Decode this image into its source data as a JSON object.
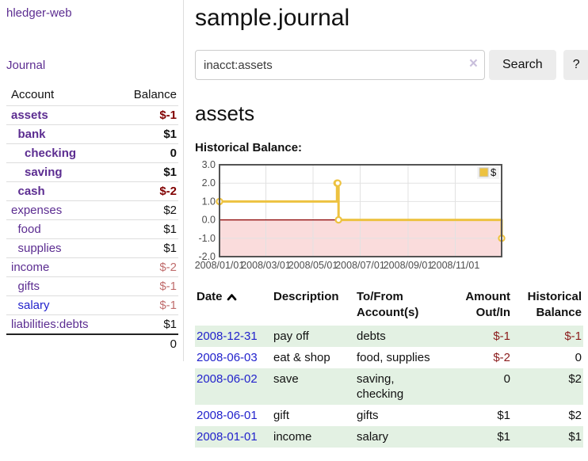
{
  "colors": {
    "accent_purple": "#5c2d91",
    "link_blue": "#2222cc",
    "negative_bold": "#800000",
    "negative_register": "#8b1c1c",
    "negative_dim": "#c06d6d",
    "row_stripe_green": "#e3f1e3",
    "chart_line_gold": "#edc240",
    "chart_negative_fill": "#fadcdc",
    "chart_zero_line": "#8b0000",
    "button_gray": "#ececec"
  },
  "sidebar": {
    "brand": "hledger-web",
    "journal_link": "Journal",
    "accounts_table": {
      "headers": [
        "Account",
        "Balance"
      ],
      "rows": [
        {
          "account": "assets",
          "indent": 1,
          "bold": true,
          "color": "purple",
          "balance": "$-1",
          "balance_class": "neg"
        },
        {
          "account": "bank",
          "indent": 2,
          "bold": true,
          "color": "purple",
          "balance": "$1",
          "balance_class": "pos"
        },
        {
          "account": "checking",
          "indent": 3,
          "bold": true,
          "color": "purple",
          "balance": "0",
          "balance_class": "pos"
        },
        {
          "account": "saving",
          "indent": 3,
          "bold": true,
          "color": "purple",
          "balance": "$1",
          "balance_class": "pos"
        },
        {
          "account": "cash",
          "indent": 2,
          "bold": true,
          "color": "purple",
          "balance": "$-2",
          "balance_class": "neg"
        },
        {
          "account": "expenses",
          "indent": 1,
          "bold": false,
          "color": "purple",
          "balance": "$2",
          "balance_class": "pos"
        },
        {
          "account": "food",
          "indent": 2,
          "bold": false,
          "color": "purple",
          "balance": "$1",
          "balance_class": "pos"
        },
        {
          "account": "supplies",
          "indent": 2,
          "bold": false,
          "color": "purple",
          "balance": "$1",
          "balance_class": "pos"
        },
        {
          "account": "income",
          "indent": 1,
          "bold": false,
          "color": "purple",
          "balance": "$-2",
          "balance_class": "neg-dim"
        },
        {
          "account": "gifts",
          "indent": 2,
          "bold": false,
          "color": "purple",
          "balance": "$-1",
          "balance_class": "neg-dim"
        },
        {
          "account": "salary",
          "indent": 2,
          "bold": false,
          "color": "blue",
          "balance": "$-1",
          "balance_class": "neg-dim"
        },
        {
          "account": "liabilities:debts",
          "indent": 1,
          "bold": false,
          "color": "purple",
          "balance": "$1",
          "balance_class": "pos"
        }
      ],
      "total": "0"
    }
  },
  "main": {
    "title": "sample.journal",
    "search": {
      "query": "inacct:assets",
      "clear_icon": "×",
      "search_button": "Search",
      "help_button": "?"
    },
    "section_heading": "assets",
    "chart_label": "Historical Balance:"
  },
  "chart_data": {
    "type": "line",
    "step": true,
    "title": "Historical Balance",
    "legend": {
      "position": "top-right",
      "entries": [
        "$"
      ]
    },
    "series": [
      {
        "name": "$",
        "color": "#edc240",
        "points": [
          [
            "2008-01-01",
            1
          ],
          [
            "2008-06-01",
            2
          ],
          [
            "2008-06-02",
            2
          ],
          [
            "2008-06-03",
            0
          ],
          [
            "2008-12-31",
            -1
          ]
        ]
      }
    ],
    "ylim": [
      -2.0,
      3.0
    ],
    "yticks": [
      "3.0",
      "2.0",
      "1.0",
      "0.0",
      "-1.0",
      "-2.0"
    ],
    "xticks": [
      "2008/01/01",
      "2008/03/01",
      "2008/05/01",
      "2008/07/01",
      "2008/09/01",
      "2008/11/01"
    ],
    "xrange": [
      "2008-01-01",
      "2008-12-31"
    ],
    "grid": true,
    "negative_region_fill": "#fadcdc",
    "zero_line_color": "#8b0000"
  },
  "register": {
    "headers": {
      "date": "Date",
      "description": "Description",
      "tofrom": "To/From Account(s)",
      "amount": "Amount Out/In",
      "balance": "Historical Balance"
    },
    "rows": [
      {
        "date": "2008-12-31",
        "description": "pay off",
        "accounts": "debts",
        "accounts_wrap": false,
        "amount": "$-1",
        "amount_neg": true,
        "balance": "$-1",
        "balance_neg": true
      },
      {
        "date": "2008-06-03",
        "description": "eat & shop",
        "accounts": "food, supplies",
        "accounts_wrap": false,
        "amount": "$-2",
        "amount_neg": true,
        "balance": "0",
        "balance_neg": false
      },
      {
        "date": "2008-06-02",
        "description": "save",
        "accounts": "saving, checking",
        "accounts_wrap": true,
        "amount": "0",
        "amount_neg": false,
        "balance": "$2",
        "balance_neg": false
      },
      {
        "date": "2008-06-01",
        "description": "gift",
        "accounts": "gifts",
        "accounts_wrap": false,
        "amount": "$1",
        "amount_neg": false,
        "balance": "$2",
        "balance_neg": false
      },
      {
        "date": "2008-01-01",
        "description": "income",
        "accounts": "salary",
        "accounts_wrap": false,
        "amount": "$1",
        "amount_neg": false,
        "balance": "$1",
        "balance_neg": false
      }
    ]
  }
}
